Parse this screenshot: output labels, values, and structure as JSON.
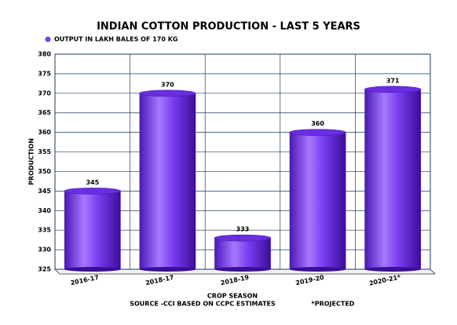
{
  "chart_data": {
    "type": "bar",
    "title": "INDIAN COTTON PRODUCTION - LAST 5 YEARS",
    "legend_label": "OUTPUT IN LAKH BALES OF 170 KG",
    "y_label": "PRODUCTION",
    "x_label": "CROP SEASON",
    "source_note": "SOURCE -CCI BASED ON CCPC ESTIMATES",
    "footnote": "*PROJECTED",
    "categories": [
      "2016-17",
      "2018-17",
      "2018-19",
      "2019-20",
      "2020-21*"
    ],
    "values": [
      345,
      370,
      333,
      360,
      371
    ],
    "color": "#7a3cf0",
    "ylim": [
      325,
      380
    ],
    "yticks": [
      325,
      330,
      335,
      340,
      345,
      350,
      355,
      360,
      365,
      370,
      375,
      380
    ],
    "grid": true
  }
}
